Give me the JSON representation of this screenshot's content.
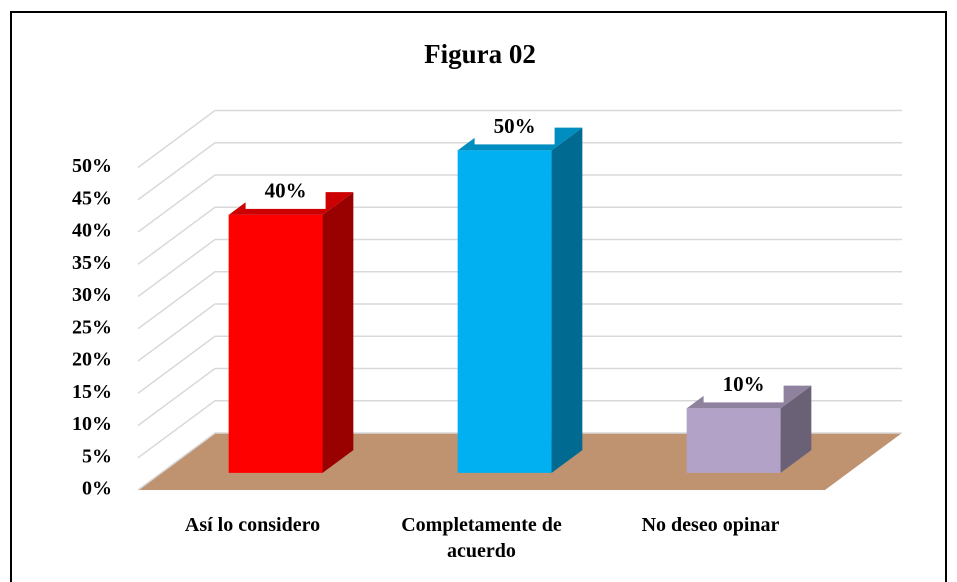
{
  "chart_data": {
    "type": "bar3d",
    "title": "Figura 02",
    "categories": [
      "Así lo considero",
      "Completamente de acuerdo",
      "No deseo opinar"
    ],
    "values": [
      40,
      50,
      10
    ],
    "value_labels": [
      "40%",
      "50%",
      "10%"
    ],
    "colors": [
      "#ff0000",
      "#00b0f0",
      "#b3a2c7"
    ],
    "floor_color": "#bf9270",
    "ylim": [
      0,
      50
    ],
    "yticks": [
      {
        "value": 0,
        "label": "0%"
      },
      {
        "value": 5,
        "label": "5%"
      },
      {
        "value": 10,
        "label": "10%"
      },
      {
        "value": 15,
        "label": "15%"
      },
      {
        "value": 20,
        "label": "20%"
      },
      {
        "value": 25,
        "label": "25%"
      },
      {
        "value": 30,
        "label": "30%"
      },
      {
        "value": 35,
        "label": "35%"
      },
      {
        "value": 40,
        "label": "40%"
      },
      {
        "value": 45,
        "label": "45%"
      },
      {
        "value": 50,
        "label": "50%"
      }
    ],
    "grid": true
  }
}
